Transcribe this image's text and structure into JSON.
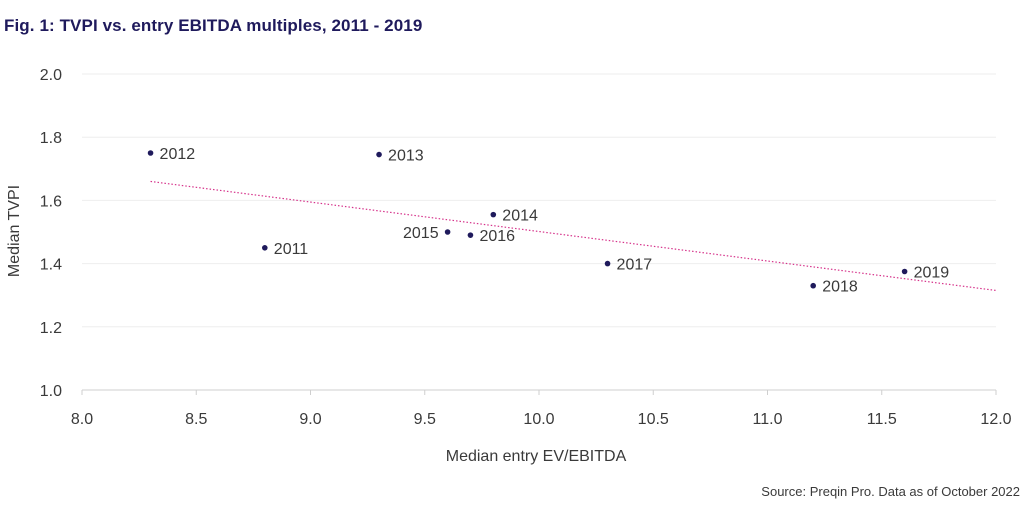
{
  "title": "Fig. 1: TVPI vs. entry EBITDA multiples, 2011 - 2019",
  "source": "Source: Preqin Pro. Data as of October 2022",
  "colors": {
    "point": "#1f1a5c",
    "trend": "#d6338b",
    "grid": "#eeeeee",
    "axis": "#cfcfcf"
  },
  "chart_data": {
    "type": "scatter",
    "title": "Fig. 1: TVPI vs. entry EBITDA multiples, 2011 - 2019",
    "xlabel": "Median entry EV/EBITDA",
    "ylabel": "Median TVPI",
    "xlim": [
      8.0,
      12.0
    ],
    "ylim": [
      1.0,
      2.0
    ],
    "xticks": [
      "8.0",
      "8.5",
      "9.0",
      "9.5",
      "10.0",
      "10.5",
      "11.0",
      "11.5",
      "12.0"
    ],
    "yticks": [
      "1.0",
      "1.2",
      "1.4",
      "1.6",
      "1.8",
      "2.0"
    ],
    "grid": "horizontal",
    "points": [
      {
        "label": "2011",
        "x": 8.8,
        "y": 1.45,
        "label_side": "right"
      },
      {
        "label": "2012",
        "x": 8.3,
        "y": 1.75,
        "label_side": "right"
      },
      {
        "label": "2013",
        "x": 9.3,
        "y": 1.745,
        "label_side": "right"
      },
      {
        "label": "2014",
        "x": 9.8,
        "y": 1.555,
        "label_side": "right"
      },
      {
        "label": "2015",
        "x": 9.6,
        "y": 1.5,
        "label_side": "left"
      },
      {
        "label": "2016",
        "x": 9.7,
        "y": 1.49,
        "label_side": "right"
      },
      {
        "label": "2017",
        "x": 10.3,
        "y": 1.4,
        "label_side": "right"
      },
      {
        "label": "2018",
        "x": 11.2,
        "y": 1.33,
        "label_side": "right"
      },
      {
        "label": "2019",
        "x": 11.6,
        "y": 1.375,
        "label_side": "right"
      }
    ],
    "trendline": {
      "x": [
        8.3,
        12.0
      ],
      "y": [
        1.66,
        1.315
      ],
      "style": "dotted"
    }
  }
}
